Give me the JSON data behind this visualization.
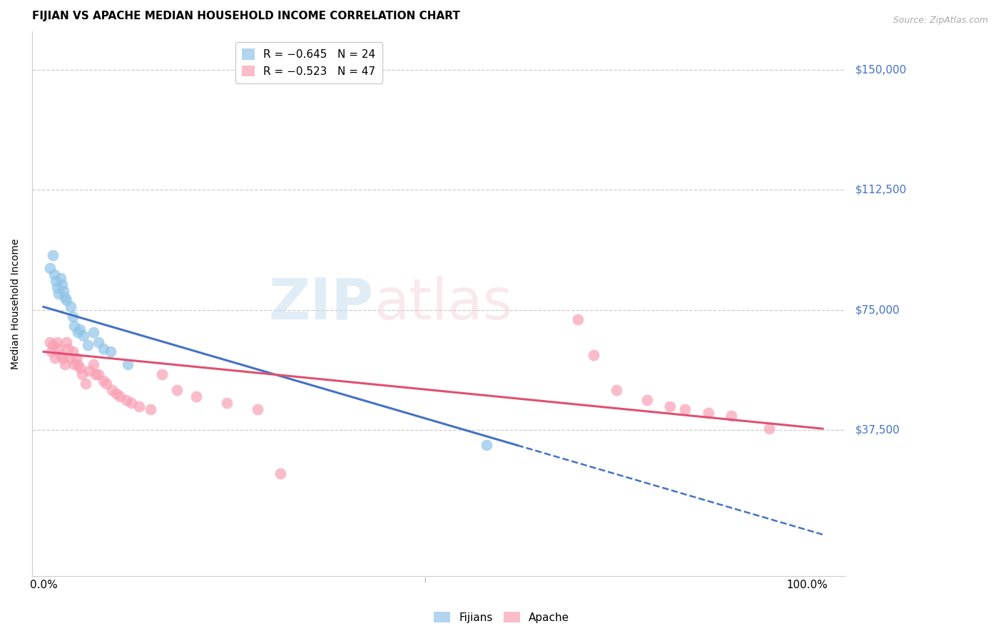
{
  "title": "FIJIAN VS APACHE MEDIAN HOUSEHOLD INCOME CORRELATION CHART",
  "source": "Source: ZipAtlas.com",
  "ylabel": "Median Household Income",
  "ylim": [
    -8000,
    162000
  ],
  "xlim": [
    -0.015,
    1.05
  ],
  "watermark_zip": "ZIP",
  "watermark_atlas": "atlas",
  "legend_fijian": "R = −0.645   N = 24",
  "legend_apache": "R = −0.523   N = 47",
  "fijian_color": "#90c4e8",
  "apache_color": "#f9a0b4",
  "fijian_line_color": "#4472c4",
  "apache_line_color": "#e05070",
  "background_color": "#ffffff",
  "fijian_x": [
    0.008,
    0.012,
    0.014,
    0.016,
    0.018,
    0.02,
    0.022,
    0.024,
    0.026,
    0.028,
    0.03,
    0.035,
    0.038,
    0.04,
    0.045,
    0.048,
    0.052,
    0.058,
    0.065,
    0.072,
    0.078,
    0.088,
    0.11,
    0.58
  ],
  "fijian_y": [
    88000,
    92000,
    86000,
    84000,
    82000,
    80000,
    85000,
    83000,
    81000,
    79000,
    78000,
    76000,
    73000,
    70000,
    68000,
    69000,
    67000,
    64000,
    68000,
    65000,
    63000,
    62000,
    58000,
    33000
  ],
  "apache_x": [
    0.008,
    0.01,
    0.012,
    0.015,
    0.018,
    0.02,
    0.022,
    0.025,
    0.028,
    0.03,
    0.032,
    0.035,
    0.038,
    0.04,
    0.043,
    0.045,
    0.048,
    0.05,
    0.055,
    0.06,
    0.065,
    0.068,
    0.072,
    0.078,
    0.082,
    0.09,
    0.095,
    0.1,
    0.108,
    0.115,
    0.125,
    0.14,
    0.155,
    0.175,
    0.2,
    0.24,
    0.28,
    0.31,
    0.7,
    0.72,
    0.75,
    0.79,
    0.82,
    0.84,
    0.87,
    0.9,
    0.95
  ],
  "apache_y": [
    65000,
    62000,
    64000,
    60000,
    65000,
    63000,
    61000,
    60000,
    58000,
    65000,
    63000,
    60000,
    62000,
    58000,
    60000,
    58000,
    57000,
    55000,
    52000,
    56000,
    58000,
    55000,
    55000,
    53000,
    52000,
    50000,
    49000,
    48000,
    47000,
    46000,
    45000,
    44000,
    55000,
    50000,
    48000,
    46000,
    44000,
    24000,
    72000,
    61000,
    50000,
    47000,
    45000,
    44000,
    43000,
    42000,
    38000
  ],
  "fijian_line_x0": 0.0,
  "fijian_line_x_solid_end": 0.62,
  "fijian_line_x1": 1.02,
  "fijian_line_y0": 76000,
  "fijian_line_y1": 5000,
  "apache_line_x0": 0.0,
  "apache_line_x1": 1.02,
  "apache_line_y0": 62000,
  "apache_line_y1": 38000,
  "ytick_vals": [
    37500,
    75000,
    112500,
    150000
  ],
  "ytick_labels": [
    "$37,500",
    "$75,000",
    "$112,500",
    "$150,000"
  ],
  "title_fontsize": 11,
  "axis_label_fontsize": 10,
  "tick_fontsize": 11,
  "legend_fontsize": 11,
  "source_fontsize": 9
}
